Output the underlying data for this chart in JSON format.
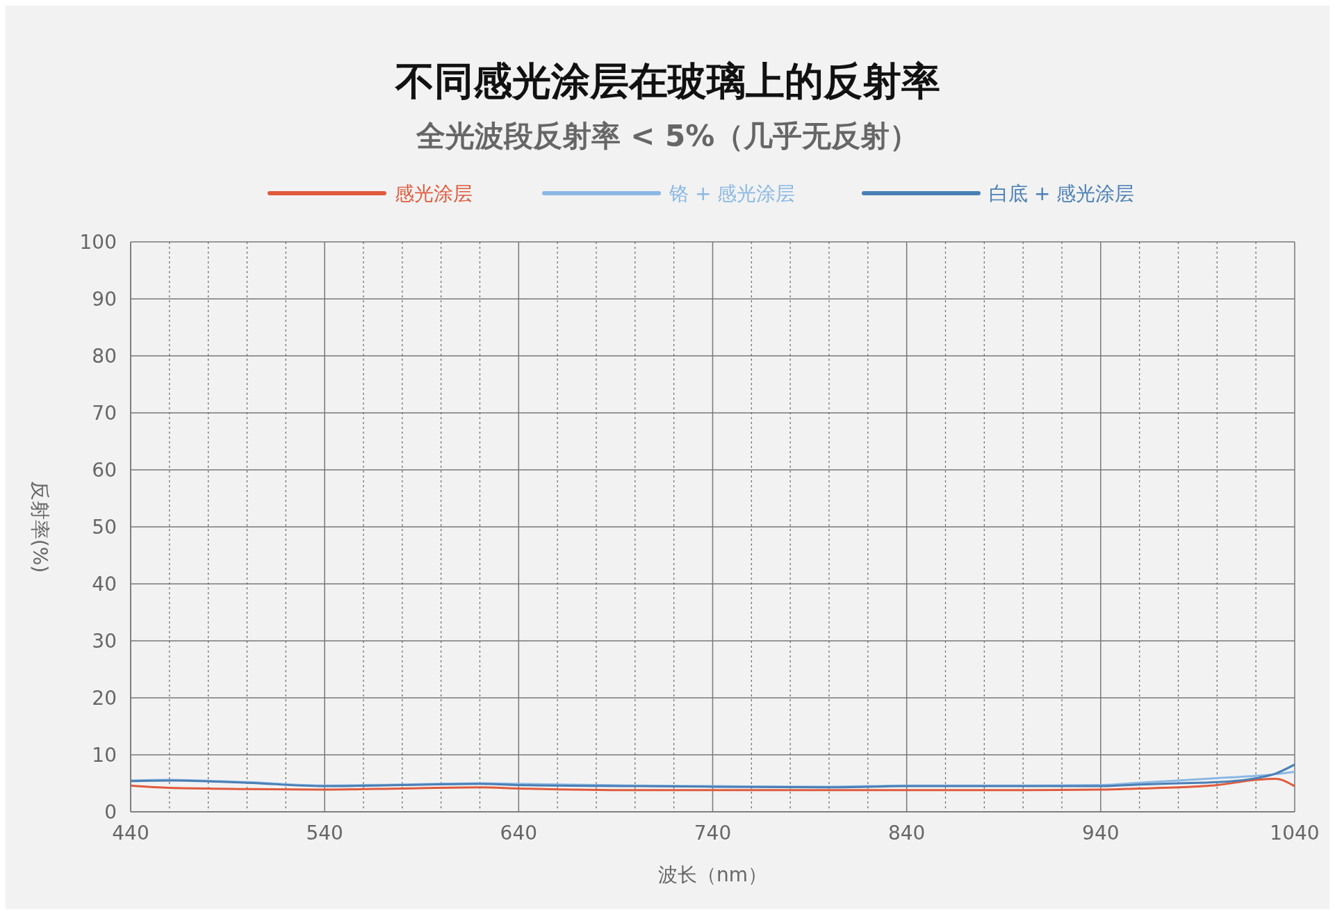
{
  "chart_data": {
    "type": "line",
    "title": "不同感光涂层在玻璃上的反射率",
    "subtitle": "全光波段反射率 < 5%（几乎无反射）",
    "xlabel": "波长（nm）",
    "ylabel": "反射率(%)",
    "x": [
      440,
      460,
      500,
      540,
      580,
      620,
      640,
      700,
      740,
      800,
      840,
      900,
      940,
      960,
      980,
      1000,
      1020,
      1030,
      1040
    ],
    "series": [
      {
        "name": "感光涂层",
        "color": "#e05a3c",
        "values": [
          4.6,
          4.2,
          4.0,
          3.9,
          4.1,
          4.3,
          4.1,
          3.8,
          3.8,
          3.8,
          3.8,
          3.8,
          3.9,
          4.1,
          4.3,
          4.7,
          5.6,
          5.8,
          4.5
        ]
      },
      {
        "name": "铬 + 感光涂层",
        "color": "#8ab8e4",
        "values": [
          5.5,
          5.6,
          5.2,
          4.6,
          4.8,
          5.0,
          4.9,
          4.6,
          4.5,
          4.4,
          4.6,
          4.6,
          4.7,
          5.1,
          5.5,
          5.9,
          6.3,
          6.6,
          7.0
        ]
      },
      {
        "name": "白底 + 感光涂层",
        "color": "#4a7fb5",
        "values": [
          5.4,
          5.5,
          5.1,
          4.5,
          4.7,
          4.9,
          4.7,
          4.5,
          4.4,
          4.3,
          4.5,
          4.5,
          4.5,
          4.8,
          5.0,
          5.2,
          5.9,
          6.7,
          8.3
        ]
      }
    ],
    "xlim": [
      440,
      1040
    ],
    "xticks": [
      440,
      {
        "value": 460,
        "label": null
      },
      {
        "value": 480,
        "label": null
      },
      {
        "value": 500,
        "label": null
      },
      {
        "value": 520,
        "label": null
      },
      540,
      {
        "value": 560,
        "label": null
      },
      {
        "value": 580,
        "label": null
      },
      {
        "value": 600,
        "label": null
      },
      {
        "value": 620,
        "label": null
      },
      640,
      {
        "value": 660,
        "label": null
      },
      {
        "value": 680,
        "label": null
      },
      {
        "value": 700,
        "label": null
      },
      {
        "value": 720,
        "label": null
      },
      740,
      {
        "value": 760,
        "label": null
      },
      {
        "value": 780,
        "label": null
      },
      {
        "value": 800,
        "label": null
      },
      {
        "value": 820,
        "label": null
      },
      840,
      {
        "value": 860,
        "label": null
      },
      {
        "value": 880,
        "label": null
      },
      {
        "value": 900,
        "label": null
      },
      {
        "value": 920,
        "label": null
      },
      940,
      {
        "value": 960,
        "label": null
      },
      {
        "value": 980,
        "label": null
      },
      {
        "value": 1000,
        "label": null
      },
      {
        "value": 1020,
        "label": null
      },
      1040
    ],
    "ylim": [
      0,
      100
    ],
    "yticks": [
      0,
      10,
      20,
      30,
      40,
      50,
      60,
      70,
      80,
      90,
      100
    ],
    "grid": true,
    "legend": "top",
    "marker": "none"
  }
}
